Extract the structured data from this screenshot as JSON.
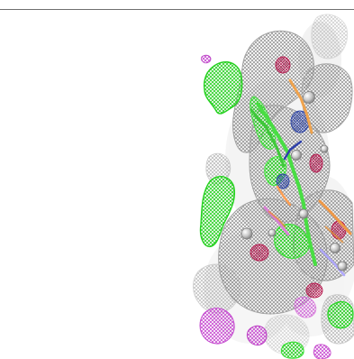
{
  "viewer": {
    "background": "#ffffff",
    "rule_color": "#6f6f6f",
    "mesh_colors": {
      "gray": "#8f8f8f",
      "green": "#31e82c",
      "magenta": "#d14fd6",
      "crimson": "#c31f59",
      "blue": "#4153b8",
      "orange": "#e68a2e"
    }
  }
}
